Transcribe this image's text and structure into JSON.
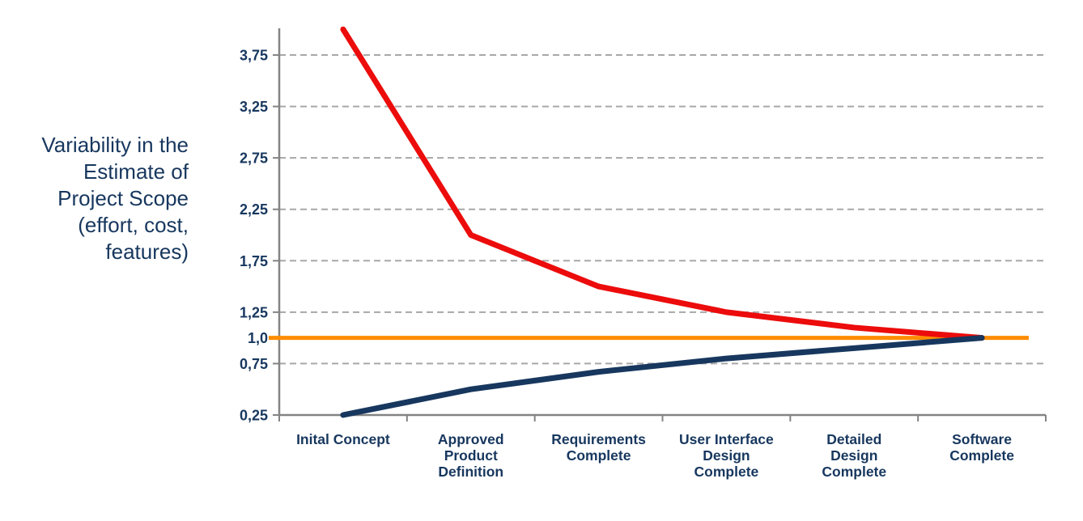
{
  "chart_data": {
    "type": "line",
    "title_lines": [
      "Variability in the",
      "Estimate of",
      "Project Scope",
      "(effort, cost,",
      "features)"
    ],
    "title_text": "Variability in the Estimate of Project Scope (effort, cost, features)",
    "categories": [
      "Inital Concept",
      "Approved Product Definition",
      "Requirements Complete",
      "User Interface Design Complete",
      "Detailed Design Complete",
      "Software Complete"
    ],
    "category_label_lines": [
      [
        "Inital Concept"
      ],
      [
        "Approved",
        "Product",
        "Definition"
      ],
      [
        "Requirements",
        "Complete"
      ],
      [
        "User Interface",
        "Design",
        "Complete"
      ],
      [
        "Detailed",
        "Design",
        "Complete"
      ],
      [
        "Software",
        "Complete"
      ]
    ],
    "yticks": [
      {
        "value": 3.75,
        "label": "3,75",
        "grid": true
      },
      {
        "value": 3.25,
        "label": "3,25",
        "grid": true
      },
      {
        "value": 2.75,
        "label": "2,75",
        "grid": true
      },
      {
        "value": 2.25,
        "label": "2,25",
        "grid": true
      },
      {
        "value": 1.75,
        "label": "1,75",
        "grid": true
      },
      {
        "value": 1.25,
        "label": "1,25",
        "grid": true
      },
      {
        "value": 1.0,
        "label": "1,0",
        "grid": false
      },
      {
        "value": 0.75,
        "label": "0,75",
        "grid": true
      },
      {
        "value": 0.25,
        "label": "0,25",
        "grid": false
      }
    ],
    "ylim": [
      0.25,
      4.01
    ],
    "series": [
      {
        "id": "upper-bound",
        "color": "#EC0C0C",
        "width": 7,
        "values": [
          4.0,
          2.0,
          1.5,
          1.25,
          1.1,
          1.0
        ]
      },
      {
        "id": "lower-bound",
        "color": "#17375E",
        "width": 7,
        "values": [
          0.25,
          0.5,
          0.67,
          0.8,
          0.9,
          1.0
        ]
      }
    ],
    "baseline": {
      "value": 1.0,
      "color": "#FF8C00",
      "width": 5
    },
    "grid": {
      "style": "dashed",
      "orientation": "horizontal",
      "color": "#A8A8A8"
    },
    "axis_color": "#848484",
    "legend": "none",
    "xlabel": "",
    "ylabel": "Variability in the Estimate of Project Scope (effort, cost, features)"
  }
}
